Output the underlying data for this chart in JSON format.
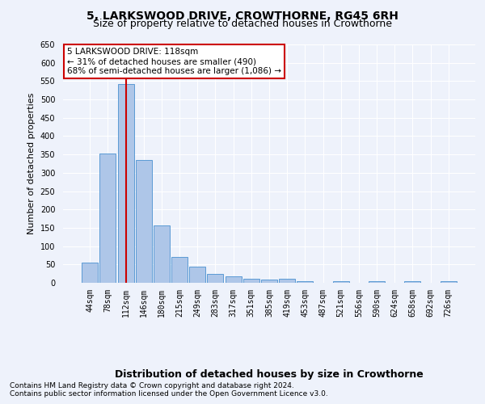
{
  "title": "5, LARKSWOOD DRIVE, CROWTHORNE, RG45 6RH",
  "subtitle": "Size of property relative to detached houses in Crowthorne",
  "xlabel_bottom": "Distribution of detached houses by size in Crowthorne",
  "ylabel": "Number of detached properties",
  "categories": [
    "44sqm",
    "78sqm",
    "112sqm",
    "146sqm",
    "180sqm",
    "215sqm",
    "249sqm",
    "283sqm",
    "317sqm",
    "351sqm",
    "385sqm",
    "419sqm",
    "453sqm",
    "487sqm",
    "521sqm",
    "556sqm",
    "590sqm",
    "624sqm",
    "658sqm",
    "692sqm",
    "726sqm"
  ],
  "values": [
    56,
    352,
    541,
    336,
    157,
    70,
    43,
    25,
    17,
    10,
    9,
    10,
    5,
    0,
    5,
    0,
    5,
    0,
    5,
    0,
    5
  ],
  "bar_color": "#aec6e8",
  "bar_edge_color": "#5b9bd5",
  "highlight_line_color": "#cc0000",
  "highlight_bar_index": 2,
  "ylim": [
    0,
    650
  ],
  "yticks": [
    0,
    50,
    100,
    150,
    200,
    250,
    300,
    350,
    400,
    450,
    500,
    550,
    600,
    650
  ],
  "annotation_text": "5 LARKSWOOD DRIVE: 118sqm\n← 31% of detached houses are smaller (490)\n68% of semi-detached houses are larger (1,086) →",
  "annotation_box_color": "#ffffff",
  "annotation_box_edge_color": "#cc0000",
  "footnote1": "Contains HM Land Registry data © Crown copyright and database right 2024.",
  "footnote2": "Contains public sector information licensed under the Open Government Licence v3.0.",
  "bg_color": "#eef2fb",
  "plot_bg_color": "#eef2fb",
  "grid_color": "#ffffff",
  "title_fontsize": 10,
  "subtitle_fontsize": 9,
  "xlabel_bottom_fontsize": 9,
  "ylabel_fontsize": 8,
  "tick_fontsize": 7,
  "footnote_fontsize": 6.5
}
